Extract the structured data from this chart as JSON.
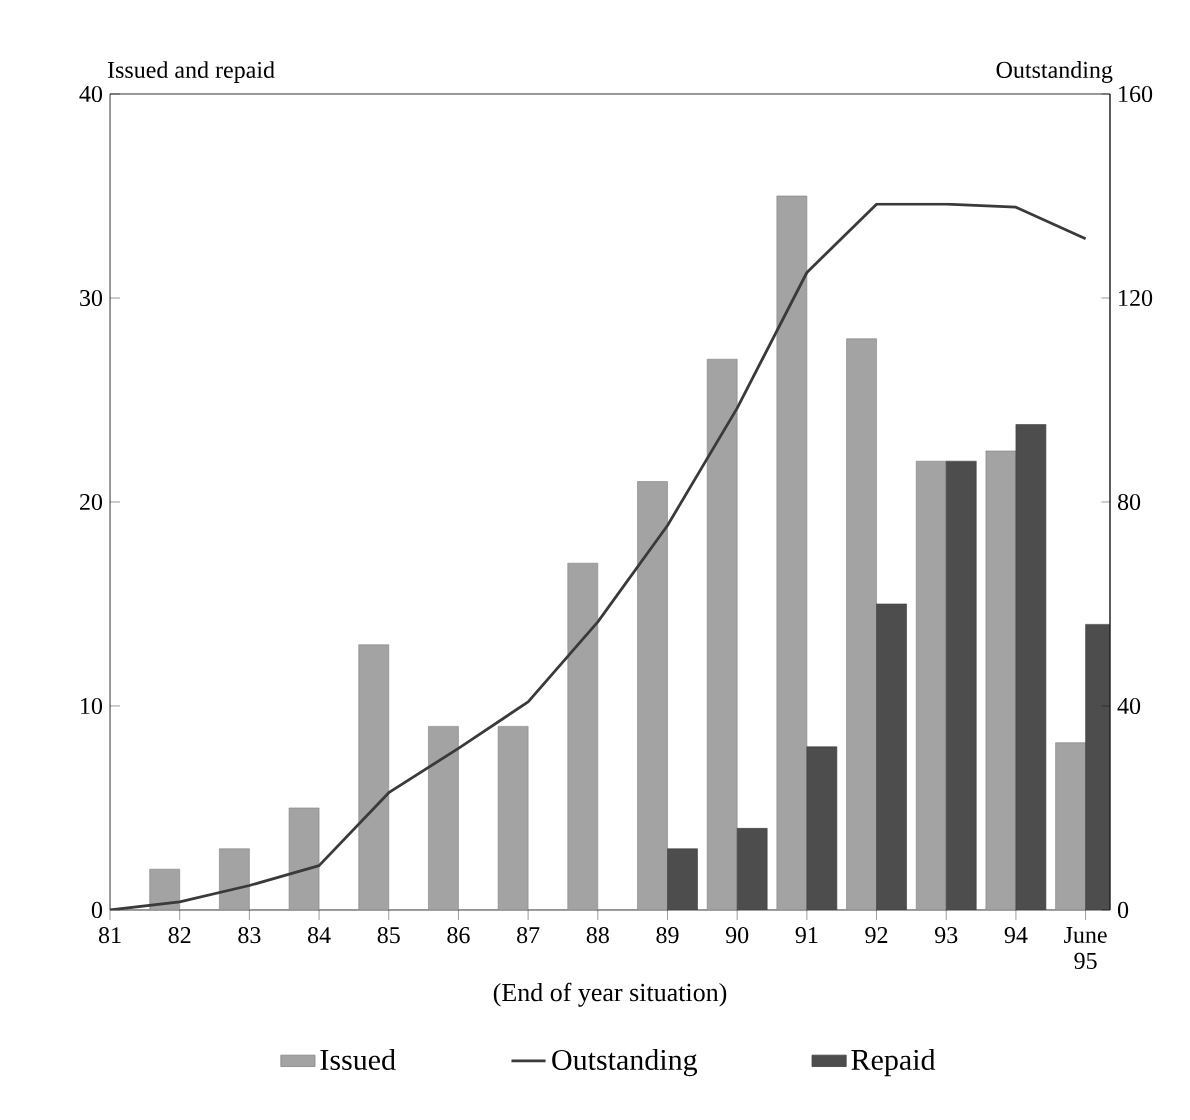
{
  "chart_data": {
    "type": "bar",
    "ylabel": "Issued and repaid",
    "y2label": "Outstanding",
    "xlabel": "(End of year situation)",
    "categories": [
      "81",
      "82",
      "83",
      "84",
      "85",
      "86",
      "87",
      "88",
      "89",
      "90",
      "91",
      "92",
      "93",
      "94",
      "June 95"
    ],
    "series": [
      {
        "name": "Issued",
        "color": "#a3a3a3",
        "values": [
          null,
          2,
          3,
          5,
          13,
          9,
          9,
          17,
          21,
          27,
          35,
          28,
          22,
          22.5,
          8.2
        ]
      },
      {
        "name": "Outstanding",
        "type": "line",
        "axis": "y2",
        "color": "#3a3a3a",
        "values": [
          0,
          1.6,
          4.8,
          8.7,
          23,
          31.7,
          40.8,
          56.5,
          75.4,
          98.4,
          125,
          138.4,
          138.4,
          137.8,
          131.6
        ]
      },
      {
        "name": "Repaid",
        "color": "#4d4d4d",
        "values": [
          null,
          null,
          null,
          null,
          null,
          null,
          null,
          null,
          3,
          4,
          8,
          15,
          22,
          23.8,
          14
        ]
      }
    ],
    "ylim": [
      0,
      40
    ],
    "yticks": [
      0,
      10,
      20,
      30,
      40
    ],
    "y2lim": [
      0,
      160
    ],
    "y2ticks": [
      0,
      40,
      80,
      120,
      160
    ],
    "legend": "bottom",
    "marker": "none"
  }
}
